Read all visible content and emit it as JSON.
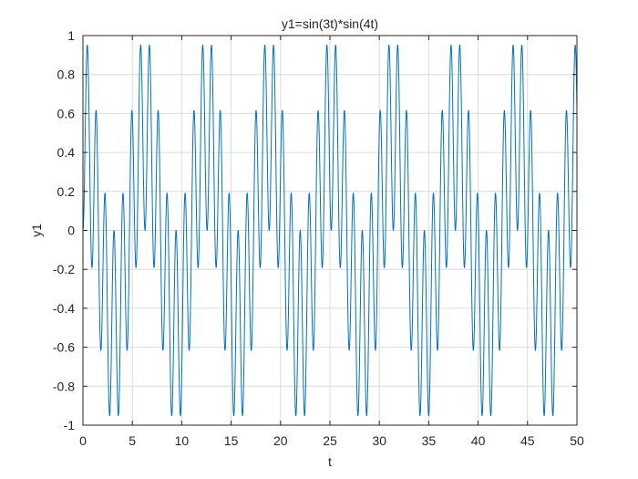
{
  "chart_data": {
    "type": "line",
    "title": "y1=sin(3t)*sin(4t)",
    "xlabel": "t",
    "ylabel": "y1",
    "xlim": [
      0,
      50
    ],
    "ylim": [
      -1,
      1
    ],
    "grid": true,
    "x_ticks": [
      "0",
      "5",
      "10",
      "15",
      "20",
      "25",
      "30",
      "35",
      "40",
      "45",
      "50"
    ],
    "y_ticks": [
      "1",
      "0.8",
      "0.6",
      "0.4",
      "0.2",
      "0",
      "-0.2",
      "-0.4",
      "-0.6",
      "-0.8",
      "-1"
    ],
    "series": [
      {
        "function": "y1 = sin(3t)*sin(4t)",
        "t_range": [
          0,
          50
        ],
        "color": "#0072BD"
      }
    ]
  }
}
